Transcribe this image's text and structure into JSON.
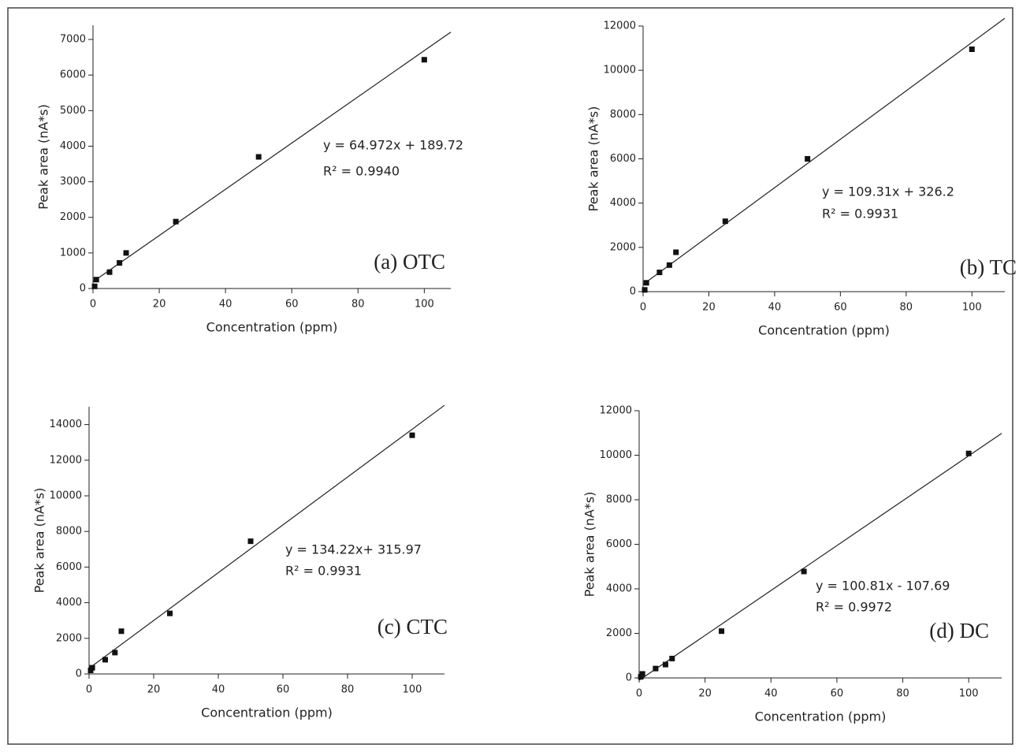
{
  "chart_data": [
    {
      "type": "scatter",
      "x_label": "Concentration (ppm)",
      "y_label": "Peak area (nA*s)",
      "color": "#111111",
      "x": [
        0.5,
        1,
        5,
        8,
        10,
        25,
        50,
        100
      ],
      "values": [
        60,
        250,
        460,
        720,
        1000,
        1880,
        3700,
        6430
      ],
      "fit_line": {
        "slope": 64.972,
        "intercept": 189.72
      },
      "equation": "y = 64.972x + 189.72",
      "r_squared": "R² = 0.9940",
      "panel_label": "(a) OTC",
      "xlim": [
        0,
        108
      ],
      "ylim": [
        0,
        7400
      ],
      "xticks": [
        0,
        20,
        40,
        60,
        80,
        100
      ],
      "yticks": [
        0,
        1000,
        2000,
        3000,
        4000,
        5000,
        6000,
        7000
      ]
    },
    {
      "type": "scatter",
      "x_label": "Concentration (ppm)",
      "y_label": "Peak area (nA*s)",
      "color": "#111111",
      "x": [
        0.5,
        1,
        5,
        8,
        10,
        25,
        50,
        100
      ],
      "values": [
        80,
        400,
        870,
        1200,
        1780,
        3180,
        6000,
        10950
      ],
      "fit_line": {
        "slope": 109.31,
        "intercept": 326.2
      },
      "equation": "y = 109.31x + 326.2",
      "r_squared": "R² = 0.9931",
      "panel_label": "(b) TC",
      "xlim": [
        0,
        110
      ],
      "ylim": [
        0,
        12000
      ],
      "xticks": [
        0,
        20,
        40,
        60,
        80,
        100
      ],
      "yticks": [
        0,
        2000,
        4000,
        6000,
        8000,
        10000,
        12000
      ]
    },
    {
      "type": "scatter",
      "x_label": "Concentration (ppm)",
      "y_label": "Peak area (nA*s)",
      "color": "#111111",
      "x": [
        0.5,
        1,
        5,
        8,
        10,
        25,
        50,
        100
      ],
      "values": [
        200,
        350,
        800,
        1200,
        2400,
        3400,
        7450,
        13400
      ],
      "fit_line": {
        "slope": 134.22,
        "intercept": 315.97
      },
      "equation": "y = 134.22x+ 315.97",
      "r_squared": "R² = 0.9931",
      "panel_label": "(c) CTC",
      "xlim": [
        0,
        110
      ],
      "ylim": [
        0,
        15000
      ],
      "xticks": [
        0,
        20,
        40,
        60,
        80,
        100
      ],
      "yticks": [
        0,
        2000,
        4000,
        6000,
        8000,
        10000,
        12000,
        14000
      ]
    },
    {
      "type": "scatter",
      "x_label": "Concentration (ppm)",
      "y_label": "Peak area (nA*s)",
      "color": "#111111",
      "x": [
        0.5,
        1,
        5,
        8,
        10,
        25,
        50,
        100
      ],
      "values": [
        50,
        180,
        420,
        600,
        870,
        2100,
        4780,
        10080
      ],
      "fit_line": {
        "slope": 100.81,
        "intercept": -107.69
      },
      "equation": "y = 100.81x - 107.69",
      "r_squared": "R² = 0.9972",
      "panel_label": "(d) DC",
      "xlim": [
        0,
        110
      ],
      "ylim": [
        0,
        12000
      ],
      "xticks": [
        0,
        20,
        40,
        60,
        80,
        100
      ],
      "yticks": [
        0,
        2000,
        4000,
        6000,
        8000,
        10000,
        12000
      ]
    }
  ]
}
